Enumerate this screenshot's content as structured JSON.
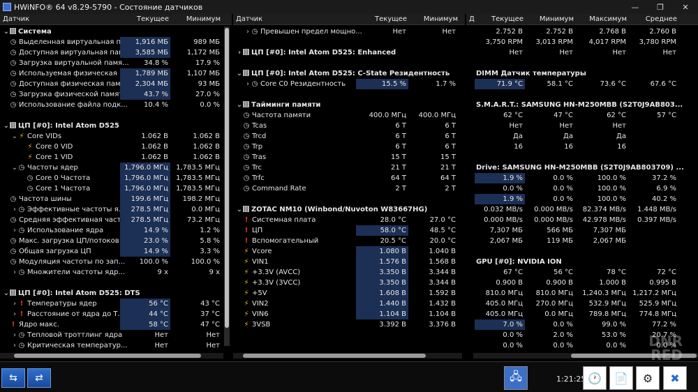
{
  "window": {
    "title": "HWiNFO® 64 v8.29-5790 - Состояние датчиков",
    "controls": [
      "—",
      "❐",
      "✕"
    ]
  },
  "left": {
    "headers": [
      "Датчик",
      "Текущее",
      "Минимум"
    ],
    "rows": [
      {
        "t": "g",
        "label": "Система",
        "exp": "⌄",
        "icon": "chip"
      },
      {
        "t": "i",
        "label": "Выделенная виртуальная пам...",
        "cur": "1,916 МБ",
        "min": "989 МБ",
        "hl": true,
        "icon": "clock"
      },
      {
        "t": "i",
        "label": "Доступная виртуальная памя...",
        "cur": "3,585 МБ",
        "min": "1,172 МБ",
        "hl": true,
        "icon": "clock"
      },
      {
        "t": "i",
        "label": "Загрузка виртуальной памя...",
        "cur": "34.8 %",
        "min": "17.9 %",
        "hl": false,
        "icon": "clock"
      },
      {
        "t": "i",
        "label": "Используемая физическая ...",
        "cur": "1,789 МБ",
        "min": "1,107 МБ",
        "hl": true,
        "icon": "clock"
      },
      {
        "t": "i",
        "label": "Доступная физическая памя...",
        "cur": "2,304 МБ",
        "min": "93 МБ",
        "hl": true,
        "icon": "clock"
      },
      {
        "t": "i",
        "label": "Загрузка физической памяти",
        "cur": "43.7 %",
        "min": "27.0 %",
        "hl": true,
        "icon": "clock"
      },
      {
        "t": "i",
        "label": "Использование файла подк...",
        "cur": "10.4 %",
        "min": "0.0 %",
        "hl": false,
        "icon": "clock"
      },
      {
        "t": "s"
      },
      {
        "t": "g",
        "label": "ЦП [#0]: Intel Atom D525",
        "exp": "⌄",
        "icon": "chip"
      },
      {
        "t": "i",
        "label": "Core VIDs",
        "cur": "1.062 В",
        "min": "1.062 В",
        "hl": false,
        "icon": "volt",
        "exp": "⌄",
        "indent": 1
      },
      {
        "t": "i",
        "label": "Core 0 VID",
        "cur": "1.062 В",
        "min": "1.062 В",
        "hl": false,
        "icon": "volt",
        "indent": 2
      },
      {
        "t": "i",
        "label": "Core 1 VID",
        "cur": "1.062 В",
        "min": "1.062 В",
        "hl": false,
        "icon": "volt",
        "indent": 2
      },
      {
        "t": "i",
        "label": "Частоты ядер",
        "cur": "1,796.0 МГц",
        "min": "1,783.5 МГц",
        "hl": true,
        "icon": "clock",
        "exp": "⌄",
        "indent": 1
      },
      {
        "t": "i",
        "label": "Core 0 Частота",
        "cur": "1,796.0 МГц",
        "min": "1,783.5 МГц",
        "hl": true,
        "icon": "clock",
        "indent": 2
      },
      {
        "t": "i",
        "label": "Core 1 Частота",
        "cur": "1,796.0 МГц",
        "min": "1,783.5 МГц",
        "hl": true,
        "icon": "clock",
        "indent": 2
      },
      {
        "t": "i",
        "label": "Частота шины",
        "cur": "199.6 МГц",
        "min": "198.2 МГц",
        "hl": true,
        "icon": "clock"
      },
      {
        "t": "i",
        "label": "Эффективные частоты я...",
        "cur": "278.5 МГц",
        "min": "0.0 МГц",
        "hl": true,
        "icon": "clock",
        "exp": "›",
        "indent": 1
      },
      {
        "t": "i",
        "label": "Средняя эффективная част...",
        "cur": "278.5 МГц",
        "min": "73.2 МГц",
        "hl": true,
        "icon": "clock"
      },
      {
        "t": "i",
        "label": "Использование ядра",
        "cur": "14.9 %",
        "min": "1.2 %",
        "hl": true,
        "icon": "clock",
        "exp": "›",
        "indent": 1
      },
      {
        "t": "i",
        "label": "Макс. загрузка ЦП/потоков",
        "cur": "23.0 %",
        "min": "5.8 %",
        "hl": true,
        "icon": "clock"
      },
      {
        "t": "i",
        "label": "Общая загрузка ЦП",
        "cur": "14.9 %",
        "min": "3.3 %",
        "hl": true,
        "icon": "clock"
      },
      {
        "t": "i",
        "label": "Модуляция частоты по зап...",
        "cur": "100.0 %",
        "min": "100.0 %",
        "hl": false,
        "icon": "clock"
      },
      {
        "t": "i",
        "label": "Множители частоты ядр...",
        "cur": "9 x",
        "min": "9 x",
        "hl": false,
        "icon": "clock",
        "exp": "›",
        "indent": 1
      },
      {
        "t": "s"
      },
      {
        "t": "g",
        "label": "ЦП [#0]: Intel Atom D525: DTS",
        "exp": "⌄",
        "icon": "chip"
      },
      {
        "t": "i",
        "label": "Температуры ядер",
        "cur": "56 °C",
        "min": "43 °C",
        "hl": true,
        "icon": "temp",
        "exp": "›",
        "indent": 1
      },
      {
        "t": "i",
        "label": "Расстояние от ядра до Т...",
        "cur": "44 °C",
        "min": "37 °C",
        "hl": true,
        "icon": "temp",
        "exp": "›",
        "indent": 1
      },
      {
        "t": "i",
        "label": "Ядро макс.",
        "cur": "58 °C",
        "min": "47 °C",
        "hl": true,
        "icon": "temp"
      },
      {
        "t": "i",
        "label": "Тепловой троттлинг ядра",
        "cur": "Нет",
        "min": "Нет",
        "hl": false,
        "icon": "clock",
        "exp": "›",
        "indent": 1
      },
      {
        "t": "i",
        "label": "Критическая температур...",
        "cur": "Нет",
        "min": "Нет",
        "hl": false,
        "icon": "clock",
        "exp": "›",
        "indent": 1
      }
    ]
  },
  "middle": {
    "headers": [
      "Датчик",
      "Текущее",
      "Минимум"
    ],
    "rows": [
      {
        "t": "i",
        "label": "Превышен предел мощно...",
        "cur": "Нет",
        "min": "Нет",
        "hl": false,
        "icon": "clock",
        "exp": "›",
        "indent": 1
      },
      {
        "t": "s"
      },
      {
        "t": "g",
        "label": "ЦП [#0]: Intel Atom D525: Enhanced",
        "exp": "›",
        "icon": "chip"
      },
      {
        "t": "s"
      },
      {
        "t": "g",
        "label": "ЦП [#0]: Intel Atom D525: C-State Резидентность",
        "exp": "⌄",
        "icon": "chip"
      },
      {
        "t": "i",
        "label": "Core C0 Резидентность",
        "cur": "15.5 %",
        "min": "1.7 %",
        "hl": true,
        "icon": "clock",
        "exp": "›",
        "indent": 1
      },
      {
        "t": "s"
      },
      {
        "t": "g",
        "label": "Тайминги памяти",
        "exp": "⌄",
        "icon": "chip"
      },
      {
        "t": "i",
        "label": "Частота памяти",
        "cur": "400.0 МГц",
        "min": "400.0 МГц",
        "hl": false,
        "icon": "clock"
      },
      {
        "t": "i",
        "label": "Tcas",
        "cur": "6 T",
        "min": "6 T",
        "hl": false,
        "icon": "clock"
      },
      {
        "t": "i",
        "label": "Trcd",
        "cur": "6 T",
        "min": "6 T",
        "hl": false,
        "icon": "clock"
      },
      {
        "t": "i",
        "label": "Trp",
        "cur": "6 T",
        "min": "6 T",
        "hl": false,
        "icon": "clock"
      },
      {
        "t": "i",
        "label": "Tras",
        "cur": "15 T",
        "min": "15 T",
        "hl": false,
        "icon": "clock"
      },
      {
        "t": "i",
        "label": "Trc",
        "cur": "21 T",
        "min": "21 T",
        "hl": false,
        "icon": "clock"
      },
      {
        "t": "i",
        "label": "Trfc",
        "cur": "64 T",
        "min": "64 T",
        "hl": false,
        "icon": "clock"
      },
      {
        "t": "i",
        "label": "Command Rate",
        "cur": "2 T",
        "min": "2 T",
        "hl": false,
        "icon": "clock"
      },
      {
        "t": "s"
      },
      {
        "t": "g",
        "label": "ZOTAC NM10 (Winbond/Nuvoton W83667HG)",
        "exp": "⌄",
        "icon": "chip"
      },
      {
        "t": "i",
        "label": "Системная плата",
        "cur": "28.0 °C",
        "min": "27.0 °C",
        "hl": false,
        "icon": "temp"
      },
      {
        "t": "i",
        "label": "ЦП",
        "cur": "58.0 °C",
        "min": "48.5 °C",
        "hl": true,
        "icon": "temp"
      },
      {
        "t": "i",
        "label": "Вспомогательный",
        "cur": "20.5 °C",
        "min": "20.0 °C",
        "hl": false,
        "icon": "temp"
      },
      {
        "t": "i",
        "label": "Vcore",
        "cur": "1.080 В",
        "min": "1.040 В",
        "hl": true,
        "icon": "volt"
      },
      {
        "t": "i",
        "label": "VIN1",
        "cur": "1.576 В",
        "min": "1.568 В",
        "hl": true,
        "icon": "volt"
      },
      {
        "t": "i",
        "label": "+3.3V (AVCC)",
        "cur": "3.350 В",
        "min": "3.344 В",
        "hl": true,
        "icon": "volt"
      },
      {
        "t": "i",
        "label": "+3.3V (3VCC)",
        "cur": "3.350 В",
        "min": "3.344 В",
        "hl": true,
        "icon": "volt"
      },
      {
        "t": "i",
        "label": "+5V",
        "cur": "1.608 В",
        "min": "1.592 В",
        "hl": true,
        "icon": "volt"
      },
      {
        "t": "i",
        "label": "VIN2",
        "cur": "1.440 В",
        "min": "1.432 В",
        "hl": true,
        "icon": "volt"
      },
      {
        "t": "i",
        "label": "VIN6",
        "cur": "1.104 В",
        "min": "1.104 В",
        "hl": true,
        "icon": "volt"
      },
      {
        "t": "i",
        "label": "3VSB",
        "cur": "3.392 В",
        "min": "3.376 В",
        "hl": false,
        "icon": "volt"
      }
    ]
  },
  "right": {
    "headers": [
      "Д",
      "Текущее",
      "Минимум",
      "Максимум",
      "Среднее"
    ],
    "rows": [
      {
        "t": "v",
        "vals": [
          "2.752 В",
          "2.752 В",
          "2.768 В",
          "2.760 В"
        ],
        "hl": false
      },
      {
        "t": "v",
        "vals": [
          "3,750 RPM",
          "3,013 RPM",
          "4,017 RPM",
          "3,780 RPM"
        ],
        "hl": false
      },
      {
        "t": "v",
        "vals": [
          "Нет",
          "Нет",
          "Нет",
          "Нет"
        ],
        "hl": false
      },
      {
        "t": "s"
      },
      {
        "t": "g",
        "label": "DIMM Датчик температуры"
      },
      {
        "t": "v",
        "vals": [
          "71.9 °C",
          "58.1 °C",
          "73.6 °C",
          "67.6 °C"
        ],
        "hl": true
      },
      {
        "t": "s"
      },
      {
        "t": "g",
        "label": "S.M.A.R.T.: SAMSUNG HN-M250MBB (S2T0J9AB803..."
      },
      {
        "t": "v",
        "vals": [
          "62 °C",
          "47 °C",
          "62 °C",
          "57 °C"
        ],
        "hl": false
      },
      {
        "t": "v",
        "vals": [
          "Нет",
          "Нет",
          "Нет",
          ""
        ],
        "hl": false
      },
      {
        "t": "v",
        "vals": [
          "Да",
          "Да",
          "Да",
          ""
        ],
        "hl": false
      },
      {
        "t": "v",
        "vals": [
          "16",
          "16",
          "16",
          ""
        ],
        "hl": false
      },
      {
        "t": "s"
      },
      {
        "t": "g",
        "label": "Drive: SAMSUNG HN-M250MBB (S2T0J9AB803709) ..."
      },
      {
        "t": "v",
        "vals": [
          "1.9 %",
          "0.0 %",
          "100.0 %",
          "37.2 %"
        ],
        "hl": true
      },
      {
        "t": "v",
        "vals": [
          "0.0 %",
          "0.0 %",
          "100.0 %",
          "6.9 %"
        ],
        "hl": false
      },
      {
        "t": "v",
        "vals": [
          "1.9 %",
          "0.0 %",
          "100.0 %",
          "40.2 %"
        ],
        "hl": true
      },
      {
        "t": "v",
        "vals": [
          "0.032 MB/s",
          "0.000 MB/s",
          "82.374 MB/s",
          "1.448 MB/s"
        ],
        "hl": false
      },
      {
        "t": "v",
        "vals": [
          "0.000 MB/s",
          "0.000 MB/s",
          "42.978 MB/s",
          "0.397 MB/s"
        ],
        "hl": false
      },
      {
        "t": "v",
        "vals": [
          "7,307 МБ",
          "566 МБ",
          "7,307 МБ",
          ""
        ],
        "hl": false
      },
      {
        "t": "v",
        "vals": [
          "2,067 МБ",
          "119 МБ",
          "2,067 МБ",
          ""
        ],
        "hl": false
      },
      {
        "t": "s"
      },
      {
        "t": "g",
        "label": "GPU [#0]: NVIDIA ION"
      },
      {
        "t": "v",
        "vals": [
          "67 °C",
          "56 °C",
          "78 °C",
          "72 °C"
        ],
        "hl": false
      },
      {
        "t": "v",
        "vals": [
          "0.900 В",
          "0.900 В",
          "1.000 В",
          "0.995 В"
        ],
        "hl": false
      },
      {
        "t": "v",
        "vals": [
          "810.0 МГц",
          "810.0 МГц",
          "1,240.3 МГц",
          "1,217.2 МГц"
        ],
        "hl": false
      },
      {
        "t": "v",
        "vals": [
          "405.0 МГц",
          "270.0 МГц",
          "532.9 МГц",
          "525.9 МГц"
        ],
        "hl": false
      },
      {
        "t": "v",
        "vals": [
          "405.0 МГц",
          "0.0 МГц",
          "789.8 МГц",
          "774.8 МГц"
        ],
        "hl": false
      },
      {
        "t": "v",
        "vals": [
          "7.0 %",
          "0.0 %",
          "99.0 %",
          "77.2 %"
        ],
        "hl": true
      },
      {
        "t": "v",
        "vals": [
          "0.0 %",
          "2.0 %",
          "53.0 %",
          "20.7 %"
        ],
        "hl": false
      },
      {
        "t": "v",
        "vals": [
          "0.0 %",
          "0.0 %",
          "0.0 %",
          "0.0 %"
        ],
        "hl": false
      }
    ]
  },
  "toolbar": {
    "time": "1:21:25"
  },
  "watermark": "DNR RED"
}
